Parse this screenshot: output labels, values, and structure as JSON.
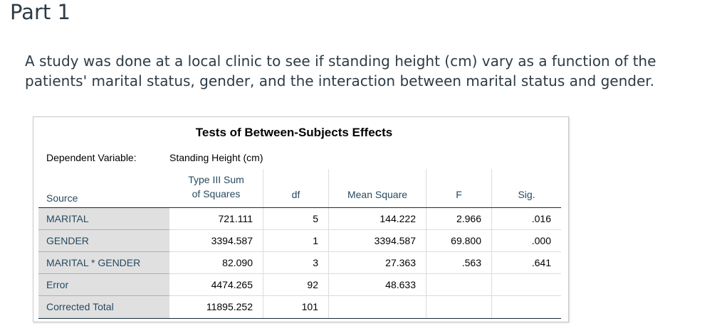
{
  "part_title": "Part 1",
  "question_text": "A study was done at a local clinic to see if standing height (cm) vary as a function of the patients' marital status, gender, and the interaction between marital status and gender.",
  "table": {
    "title": "Tests of Between-Subjects Effects",
    "dependent_variable_label": "Dependent Variable:",
    "dependent_variable_value": "Standing Height (cm)",
    "headers": {
      "source": "Source",
      "ss_line1": "Type III Sum",
      "ss_line2": "of Squares",
      "df": "df",
      "ms": "Mean Square",
      "f": "F",
      "sig": "Sig."
    },
    "rows": [
      {
        "source": "MARITAL",
        "ss": "721.111",
        "df": "5",
        "ms": "144.222",
        "f": "2.966",
        "sig": ".016"
      },
      {
        "source": "GENDER",
        "ss": "3394.587",
        "df": "1",
        "ms": "3394.587",
        "f": "69.800",
        "sig": ".000"
      },
      {
        "source": "MARITAL * GENDER",
        "ss": "82.090",
        "df": "3",
        "ms": "27.363",
        "f": ".563",
        "sig": ".641"
      },
      {
        "source": "Error",
        "ss": "4474.265",
        "df": "92",
        "ms": "48.633",
        "f": "",
        "sig": ""
      },
      {
        "source": "Corrected Total",
        "ss": "11895.252",
        "df": "101",
        "ms": "",
        "f": "",
        "sig": ""
      }
    ]
  }
}
